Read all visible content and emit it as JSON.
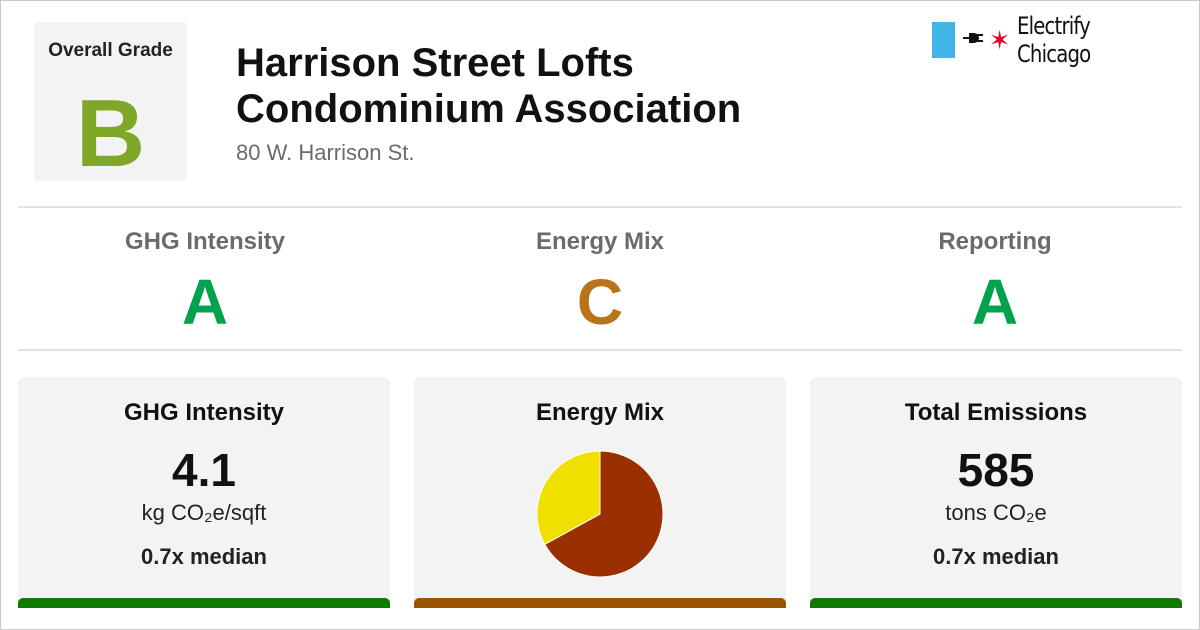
{
  "colors": {
    "grade_A": "#00a24e",
    "grade_B": "#7fa82b",
    "grade_C": "#b9741a",
    "bar_green": "#0f7a00",
    "bar_brown": "#9a5400",
    "pie_primary": "#9a3000",
    "pie_secondary": "#f0e000"
  },
  "header": {
    "overall_label": "Overall Grade",
    "overall_grade": "B",
    "title_line1": "Harrison Street Lofts",
    "title_line2": "Condominium Association",
    "address": "80 W. Harrison St."
  },
  "brand": {
    "text": "Electrify Chicago",
    "icons": [
      "flag-bar-icon",
      "plug-icon",
      "star-icon"
    ]
  },
  "sub_grades": [
    {
      "label": "GHG Intensity",
      "grade": "A"
    },
    {
      "label": "Energy Mix",
      "grade": "C"
    },
    {
      "label": "Reporting",
      "grade": "A"
    }
  ],
  "cards": {
    "ghg": {
      "title": "GHG Intensity",
      "value": "4.1",
      "unit": "kg CO₂e/sqft",
      "median": "0.7x median"
    },
    "mix": {
      "title": "Energy Mix"
    },
    "emissions": {
      "title": "Total Emissions",
      "value": "585",
      "unit": "tons CO₂e",
      "median": "0.7x median"
    }
  },
  "chart_data": {
    "type": "pie",
    "title": "Energy Mix",
    "slices": [
      {
        "name": "primary",
        "fraction": 0.67,
        "color": "#9a3000"
      },
      {
        "name": "secondary",
        "fraction": 0.33,
        "color": "#f0e000"
      }
    ]
  }
}
